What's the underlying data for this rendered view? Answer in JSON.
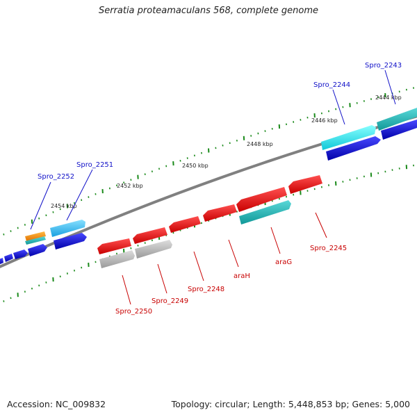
{
  "title": "Serratia proteamaculans 568, complete genome",
  "footer": {
    "accession": "Accession: NC_009832",
    "topology": "Topology: circular; Length: 5,448,853 bp; Genes: 5,000"
  },
  "scale_labels": [
    "2444 kbp",
    "2446 kbp",
    "2448 kbp",
    "2450 kbp",
    "2452 kbp",
    "2454 kbp"
  ],
  "gene_labels": {
    "top": [
      "Spro_2243",
      "Spro_2244",
      "Spro_2251",
      "Spro_2252"
    ],
    "bottom": [
      "Spro_2245",
      "araG",
      "araH",
      "Spro_2248",
      "Spro_2249",
      "Spro_2250"
    ]
  },
  "colors": {
    "backbone": "#808080",
    "ticks": "#1a8a1a",
    "forward_cds": "#1010e0",
    "reverse_cds": "#ee1111",
    "cyan": "#22eeee",
    "teal": "#22bbbb",
    "light_blue": "#55ccff",
    "grey": "#b4b4b4",
    "orange": "#ff9900"
  }
}
